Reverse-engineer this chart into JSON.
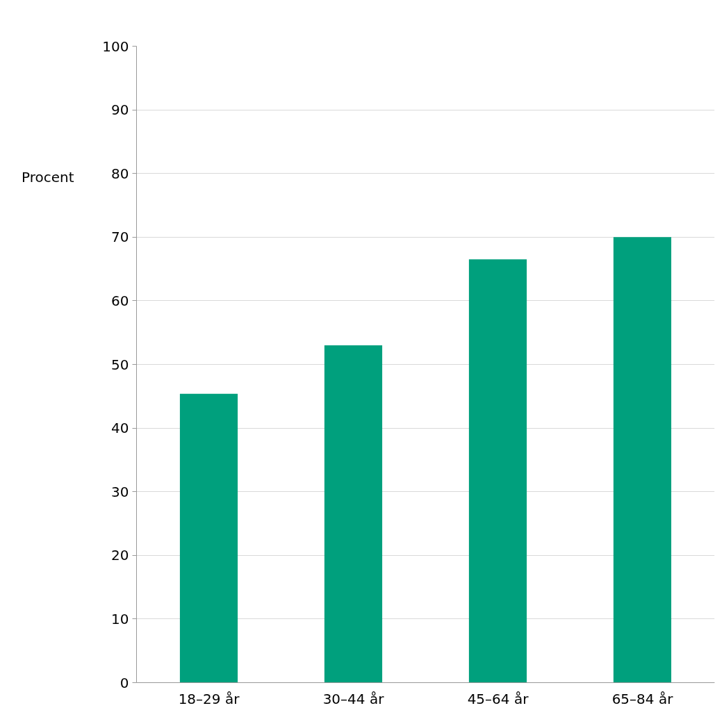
{
  "chart_data": {
    "type": "bar",
    "ylabel": "Procent",
    "categories": [
      "18–29 år",
      "30–44 år",
      "45–64 år",
      "65–84 år"
    ],
    "values": [
      45.4,
      53.0,
      66.5,
      70.0
    ],
    "color": "#00a07d",
    "ylim": [
      0,
      100
    ],
    "yticks": [
      0,
      10,
      20,
      30,
      40,
      50,
      60,
      70,
      80,
      90,
      100
    ],
    "grid": "y"
  }
}
